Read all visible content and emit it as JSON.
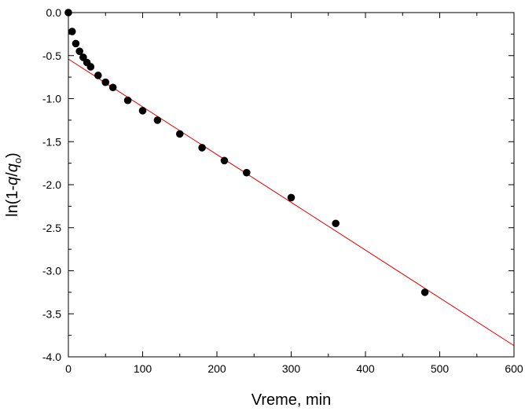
{
  "colors": {
    "points": "#000000",
    "fit_line": "#e00000",
    "axes": "#000000"
  },
  "chart_data": {
    "type": "scatter",
    "title": "",
    "xlabel": "Vreme, min",
    "ylabel": {
      "prefix": "ln(1-",
      "q": "q",
      "slash": "/",
      "q0": "q",
      "sub": "o",
      "suffix": ")"
    },
    "xlim": [
      0,
      600
    ],
    "ylim": [
      -4.0,
      0.0
    ],
    "x_ticks": [
      0,
      100,
      200,
      300,
      400,
      500,
      600
    ],
    "x_tick_labels": [
      "0",
      "100",
      "200",
      "300",
      "400",
      "500",
      "600"
    ],
    "y_ticks": [
      0.0,
      -0.5,
      -1.0,
      -1.5,
      -2.0,
      -2.5,
      -3.0,
      -3.5,
      -4.0
    ],
    "y_tick_labels": [
      "0.0",
      "-0.5",
      "-1.0",
      "-1.5",
      "-2.0",
      "-2.5",
      "-3.0",
      "-3.5",
      "-4.0"
    ],
    "grid": false,
    "legend": "none",
    "series": [
      {
        "kind": "points",
        "x": [
          0,
          5,
          10,
          15,
          20,
          25,
          30,
          40,
          50,
          60,
          80,
          100,
          120,
          150,
          180,
          210,
          240,
          300,
          360,
          480
        ],
        "y": [
          0.0,
          -0.22,
          -0.36,
          -0.45,
          -0.52,
          -0.58,
          -0.63,
          -0.73,
          -0.81,
          -0.87,
          -1.02,
          -1.14,
          -1.25,
          -1.41,
          -1.57,
          -1.72,
          -1.86,
          -2.15,
          -2.45,
          -3.25
        ]
      },
      {
        "kind": "line",
        "x": [
          0,
          600
        ],
        "y": [
          -0.54,
          -3.87
        ]
      }
    ]
  }
}
